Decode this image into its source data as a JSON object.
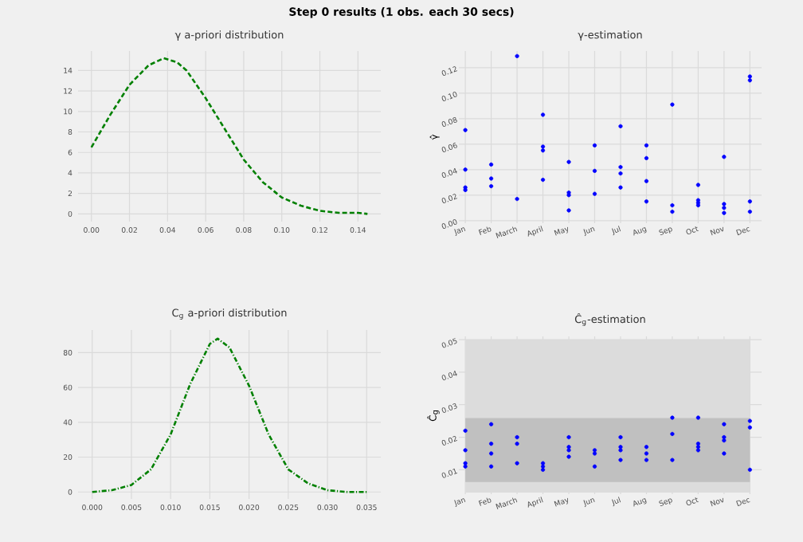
{
  "chart_data": [
    {
      "type": "line",
      "title": "γ a-priori distribution",
      "annotations": [
        "Step 0 results (1 obs. each 30 secs)"
      ],
      "x": [
        0.0,
        0.01,
        0.02,
        0.03,
        0.038,
        0.045,
        0.05,
        0.06,
        0.07,
        0.08,
        0.09,
        0.1,
        0.11,
        0.12,
        0.13,
        0.14,
        0.145
      ],
      "series": [
        {
          "color": "#008000",
          "values": [
            6.5,
            9.7,
            12.6,
            14.5,
            15.2,
            14.8,
            14.0,
            11.3,
            8.3,
            5.3,
            3.1,
            1.6,
            0.8,
            0.3,
            0.1,
            0.1,
            0.0
          ]
        }
      ],
      "line_style": "dashed",
      "grid": true,
      "xlim": [
        -0.007,
        0.152
      ],
      "ylim": [
        -0.75,
        15.9
      ],
      "xticks": [
        {
          "value": 0,
          "label": "0.00"
        },
        0.02,
        0.04,
        0.06,
        0.08,
        {
          "value": 0.1,
          "label": "0.10"
        },
        0.12,
        0.14
      ],
      "yticks": [
        0,
        2,
        4,
        6,
        8,
        10,
        12,
        14
      ]
    },
    {
      "type": "scatter",
      "title": "γ-estimation",
      "ylabel": "γ̂",
      "categories": [
        "Jan",
        "Feb",
        "March",
        "April",
        "May",
        "Jun",
        "Jul",
        "Aug",
        "Sep",
        "Oct",
        "Nov",
        "Dec"
      ],
      "series": [
        {
          "values": [
            0.071,
            0.044,
            0.129,
            0.083,
            0.046,
            0.059,
            0.074,
            0.059,
            0.091,
            0.028,
            0.05,
            0.113
          ]
        },
        {
          "values": [
            0.04,
            0.033,
            0.017,
            0.058,
            0.022,
            0.039,
            0.042,
            0.049,
            0.012,
            0.016,
            0.013,
            0.11
          ]
        },
        {
          "values": [
            0.026,
            0.027,
            null,
            0.055,
            0.02,
            0.021,
            0.037,
            0.031,
            0.007,
            0.014,
            0.01,
            0.015
          ]
        },
        {
          "values": [
            0.024,
            null,
            null,
            0.032,
            0.008,
            null,
            0.026,
            0.015,
            null,
            0.012,
            0.006,
            0.007
          ]
        }
      ],
      "color": "#0000ff",
      "marker": "circle",
      "grid": true,
      "ylim": [
        -0.002,
        0.133
      ],
      "yticks": [
        {
          "value": 0,
          "label": "0.00"
        },
        0.02,
        0.04,
        0.06,
        0.08,
        {
          "value": 0.1,
          "label": "0.10"
        },
        0.12
      ]
    },
    {
      "type": "line",
      "title": "C$_{g}$ a-priori distribution",
      "x": [
        0.0,
        0.0025,
        0.005,
        0.0075,
        0.01,
        0.0125,
        0.015,
        0.016,
        0.0175,
        0.02,
        0.0225,
        0.025,
        0.0275,
        0.03,
        0.0325,
        0.035
      ],
      "series": [
        {
          "color": "#008000",
          "values": [
            0,
            1,
            4,
            13,
            33,
            62,
            85,
            88,
            83,
            61,
            33,
            13,
            5,
            1,
            0,
            0
          ]
        }
      ],
      "line_style": "dashdot",
      "grid": true,
      "xlim": [
        -0.0018,
        0.0368
      ],
      "ylim": [
        -4,
        93
      ],
      "xticks": [
        {
          "value": 0,
          "label": "0.000"
        },
        0.005,
        {
          "value": 0.01,
          "label": "0.010"
        },
        0.015,
        {
          "value": 0.02,
          "label": "0.020"
        },
        0.025,
        {
          "value": 0.03,
          "label": "0.030"
        },
        0.035
      ],
      "yticks": [
        0,
        20,
        40,
        60,
        80
      ]
    },
    {
      "type": "scatter",
      "title": "Ĉ$_{g}$-estimation",
      "ylabel": "Ĉ$_{g}$",
      "categories": [
        "Jan",
        "Feb",
        "March",
        "April",
        "May",
        "Jun",
        "Jul",
        "Aug",
        "Sep",
        "Oct",
        "Nov",
        "Dec"
      ],
      "series": [
        {
          "values": [
            0.022,
            0.024,
            0.02,
            0.012,
            0.02,
            0.016,
            0.02,
            0.017,
            0.026,
            0.026,
            0.024,
            0.025
          ]
        },
        {
          "values": [
            0.016,
            0.018,
            0.018,
            0.011,
            0.017,
            0.015,
            0.017,
            0.015,
            0.021,
            0.018,
            0.02,
            0.023
          ]
        },
        {
          "values": [
            0.012,
            0.015,
            0.012,
            0.01,
            0.016,
            0.011,
            0.016,
            0.013,
            0.013,
            0.017,
            0.019,
            0.01
          ]
        },
        {
          "values": [
            0.011,
            0.011,
            null,
            null,
            0.014,
            null,
            0.013,
            null,
            null,
            0.016,
            0.015,
            null
          ]
        }
      ],
      "color": "#0000ff",
      "marker": "circle",
      "grid": true,
      "ylim": [
        0.0025,
        0.051
      ],
      "yticks": [
        {
          "value": 0.01,
          "label": "0.01"
        },
        0.02,
        0.03,
        0.04,
        0.05
      ],
      "bands": [
        {
          "axis": "y",
          "from": 0.003,
          "to": 0.05,
          "color": "#dcdcdc"
        },
        {
          "axis": "y",
          "from": 0.0062,
          "to": 0.0259,
          "color": "#c0c0c0"
        }
      ]
    }
  ]
}
